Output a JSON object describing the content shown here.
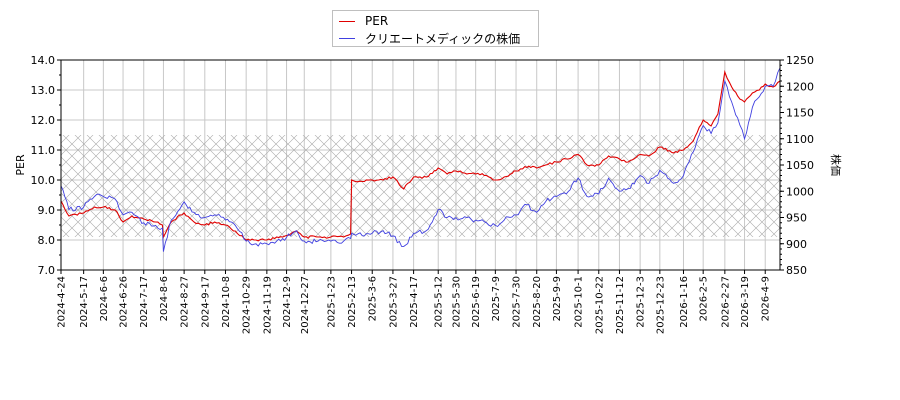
{
  "chart_data": {
    "type": "line",
    "title": "",
    "xlabel": "",
    "ylabel": "PER",
    "y2label": "株価",
    "ylim": [
      7.0,
      14.0
    ],
    "y2lim": [
      850,
      1250
    ],
    "grid": true,
    "legend_position": "top-center",
    "y_ticks": [
      "7.0",
      "8.0",
      "9.0",
      "10.0",
      "11.0",
      "12.0",
      "13.0",
      "14.0"
    ],
    "y2_ticks": [
      "850",
      "900",
      "950",
      "1000",
      "1050",
      "1100",
      "1150",
      "1200",
      "1250"
    ],
    "x_ticks": [
      "2024-4-24",
      "2024-5-17",
      "2024-6-6",
      "2024-6-26",
      "2024-7-17",
      "2024-8-6",
      "2024-8-27",
      "2024-9-17",
      "2024-10-8",
      "2024-10-29",
      "2024-11-19",
      "2024-12-9",
      "2024-12-27",
      "2025-1-23",
      "2025-2-13",
      "2025-3-6",
      "2025-3-27",
      "2025-4-17",
      "2025-5-12",
      "2025-5-30",
      "2025-6-19",
      "2025-7-9",
      "2025-7-30",
      "2025-8-20",
      "2025-9-9",
      "2025-10-1",
      "2025-10-22",
      "2025-11-12",
      "2025-12-3",
      "2025-12-23",
      "2026-1-16",
      "2026-2-5",
      "2026-2-27",
      "2026-3-19",
      "2026-4-9"
    ],
    "shaded_band": {
      "y_from": 8.1,
      "y_to": 11.5,
      "style": "cross-hatch"
    },
    "series": [
      {
        "name": "PER",
        "color": "#e00000",
        "axis": "left",
        "x": [
          "2024-4-24",
          "2024-5-2",
          "2024-5-17",
          "2024-5-28",
          "2024-6-6",
          "2024-6-18",
          "2024-6-26",
          "2024-7-5",
          "2024-7-17",
          "2024-7-29",
          "2024-8-5",
          "2024-8-6",
          "2024-8-14",
          "2024-8-27",
          "2024-9-6",
          "2024-9-17",
          "2024-9-27",
          "2024-10-8",
          "2024-10-18",
          "2024-10-29",
          "2024-11-8",
          "2024-11-19",
          "2024-11-29",
          "2024-12-9",
          "2024-12-19",
          "2024-12-27",
          "2025-1-10",
          "2025-1-23",
          "2025-2-5",
          "2025-2-12",
          "2025-2-13",
          "2025-2-26",
          "2025-3-6",
          "2025-3-17",
          "2025-3-27",
          "2025-4-7",
          "2025-4-17",
          "2025-4-30",
          "2025-5-12",
          "2025-5-21",
          "2025-5-30",
          "2025-6-10",
          "2025-6-19",
          "2025-6-30",
          "2025-7-9",
          "2025-7-18",
          "2025-7-30",
          "2025-8-8",
          "2025-8-20",
          "2025-8-29",
          "2025-9-9",
          "2025-9-19",
          "2025-10-1",
          "2025-10-10",
          "2025-10-22",
          "2025-11-1",
          "2025-11-12",
          "2025-11-21",
          "2025-12-3",
          "2025-12-12",
          "2025-12-23",
          "2026-1-6",
          "2026-1-16",
          "2026-1-26",
          "2026-2-5",
          "2026-2-13",
          "2026-2-20",
          "2026-2-27",
          "2026-3-6",
          "2026-3-12",
          "2026-3-19",
          "2026-3-27",
          "2026-4-3",
          "2026-4-9",
          "2026-4-17",
          "2026-4-24"
        ],
        "values": [
          9.3,
          8.8,
          8.9,
          9.1,
          9.1,
          9.0,
          8.6,
          8.8,
          8.7,
          8.6,
          8.5,
          8.1,
          8.6,
          8.9,
          8.6,
          8.5,
          8.6,
          8.5,
          8.3,
          8.0,
          8.0,
          8.0,
          8.1,
          8.15,
          8.3,
          8.1,
          8.1,
          8.1,
          8.1,
          8.2,
          10.0,
          9.95,
          10.0,
          10.0,
          10.1,
          9.7,
          10.1,
          10.1,
          10.4,
          10.2,
          10.3,
          10.2,
          10.2,
          10.15,
          10.0,
          10.1,
          10.3,
          10.45,
          10.4,
          10.5,
          10.6,
          10.7,
          10.85,
          10.5,
          10.5,
          10.8,
          10.7,
          10.6,
          10.85,
          10.8,
          11.1,
          10.9,
          11.0,
          11.3,
          12.0,
          11.8,
          12.2,
          13.6,
          13.1,
          12.8,
          12.6,
          12.9,
          13.0,
          13.2,
          13.1,
          13.3
        ]
      },
      {
        "name": "クリエートメディックの株価",
        "color": "#4040e0",
        "axis": "right",
        "x": [
          "2024-4-24",
          "2024-5-2",
          "2024-5-17",
          "2024-5-28",
          "2024-6-6",
          "2024-6-18",
          "2024-6-26",
          "2024-7-5",
          "2024-7-17",
          "2024-7-29",
          "2024-8-5",
          "2024-8-6",
          "2024-8-14",
          "2024-8-27",
          "2024-9-6",
          "2024-9-17",
          "2024-9-27",
          "2024-10-8",
          "2024-10-18",
          "2024-10-29",
          "2024-11-8",
          "2024-11-19",
          "2024-11-29",
          "2024-12-9",
          "2024-12-19",
          "2024-12-27",
          "2025-1-10",
          "2025-1-23",
          "2025-2-5",
          "2025-2-12",
          "2025-2-13",
          "2025-2-26",
          "2025-3-6",
          "2025-3-17",
          "2025-3-27",
          "2025-4-7",
          "2025-4-17",
          "2025-4-30",
          "2025-5-12",
          "2025-5-21",
          "2025-5-30",
          "2025-6-10",
          "2025-6-19",
          "2025-6-30",
          "2025-7-9",
          "2025-7-18",
          "2025-7-30",
          "2025-8-8",
          "2025-8-20",
          "2025-8-29",
          "2025-9-9",
          "2025-9-19",
          "2025-10-1",
          "2025-10-10",
          "2025-10-22",
          "2025-11-1",
          "2025-11-12",
          "2025-11-21",
          "2025-12-3",
          "2025-12-12",
          "2025-12-23",
          "2026-1-6",
          "2026-1-16",
          "2026-1-26",
          "2026-2-5",
          "2026-2-13",
          "2026-2-20",
          "2026-2-27",
          "2026-3-6",
          "2026-3-12",
          "2026-3-19",
          "2026-3-27",
          "2026-4-3",
          "2026-4-9",
          "2026-4-17",
          "2026-4-24"
        ],
        "values": [
          1010,
          965,
          970,
          990,
          990,
          985,
          955,
          960,
          940,
          935,
          930,
          885,
          945,
          980,
          960,
          950,
          955,
          945,
          935,
          905,
          900,
          900,
          905,
          912,
          925,
          905,
          905,
          905,
          905,
          910,
          920,
          915,
          920,
          925,
          915,
          895,
          920,
          925,
          965,
          950,
          950,
          950,
          945,
          940,
          935,
          945,
          955,
          975,
          960,
          980,
          990,
          995,
          1025,
          990,
          995,
          1025,
          1000,
          1005,
          1030,
          1015,
          1040,
          1015,
          1030,
          1075,
          1125,
          1110,
          1130,
          1210,
          1170,
          1140,
          1100,
          1160,
          1180,
          1200,
          1200,
          1235
        ]
      }
    ]
  },
  "legend": {
    "items": [
      {
        "label": "PER",
        "color": "#e00000"
      },
      {
        "label": "クリエートメディックの株価",
        "color": "#4040e0"
      }
    ]
  },
  "axes": {
    "left_label": "PER",
    "right_label": "株価"
  }
}
